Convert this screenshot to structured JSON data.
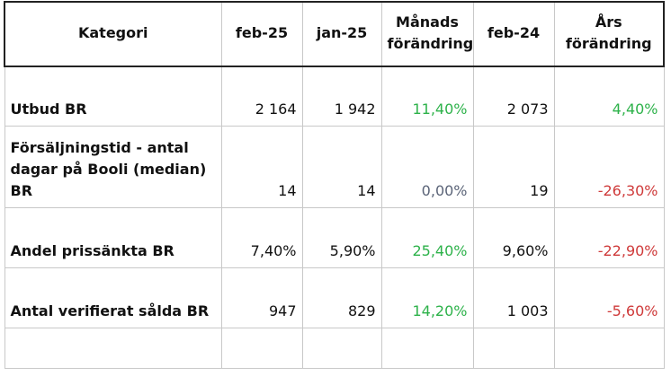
{
  "table": {
    "headers": [
      "Kategori",
      "feb-25",
      "jan-25",
      "Månads förändring",
      "feb-24",
      "Års förändring"
    ],
    "rows": [
      {
        "label": "Utbud BR",
        "feb25": "2 164",
        "jan25": "1 942",
        "monthly": "11,40%",
        "feb24": "2 073",
        "yearly": "4,40%"
      },
      {
        "label": "Försäljningstid - antal dagar på Booli (median) BR",
        "feb25": "14",
        "jan25": "14",
        "monthly": "0,00%",
        "feb24": "19",
        "yearly": "-26,30%"
      },
      {
        "label": "Andel prissänkta BR",
        "feb25": "7,40%",
        "jan25": "5,90%",
        "monthly": "25,40%",
        "feb24": "9,60%",
        "yearly": "-22,90%"
      },
      {
        "label": "Antal verifierat sålda BR",
        "feb25": "947",
        "jan25": "829",
        "monthly": "14,20%",
        "feb24": "1 003",
        "yearly": "-5,60%"
      }
    ]
  },
  "colors": {
    "positive": "#2db24a",
    "neutral": "#5b6478",
    "negative": "#cf3a3a",
    "text": "#111111",
    "grid": "#c8c8c8",
    "header_border": "#222222"
  }
}
